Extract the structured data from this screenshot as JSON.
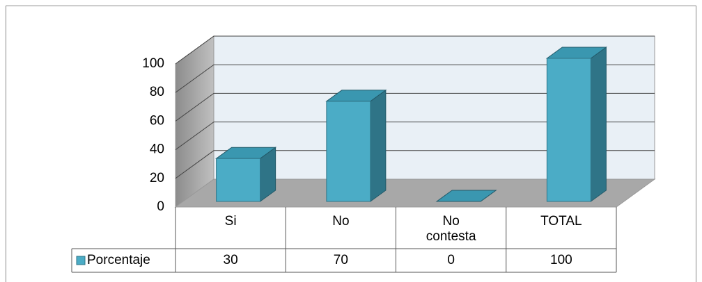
{
  "chart_data": {
    "type": "bar3d",
    "categories": [
      "Si",
      "No",
      "No contesta",
      "TOTAL"
    ],
    "series": [
      {
        "name": "Porcentaje",
        "color": "#4bacc6",
        "values": [
          30,
          70,
          0,
          100
        ]
      }
    ],
    "ylim": [
      0,
      100
    ],
    "yticks": [
      0,
      20,
      40,
      60,
      80,
      100
    ],
    "grid": true,
    "legend": "table"
  }
}
